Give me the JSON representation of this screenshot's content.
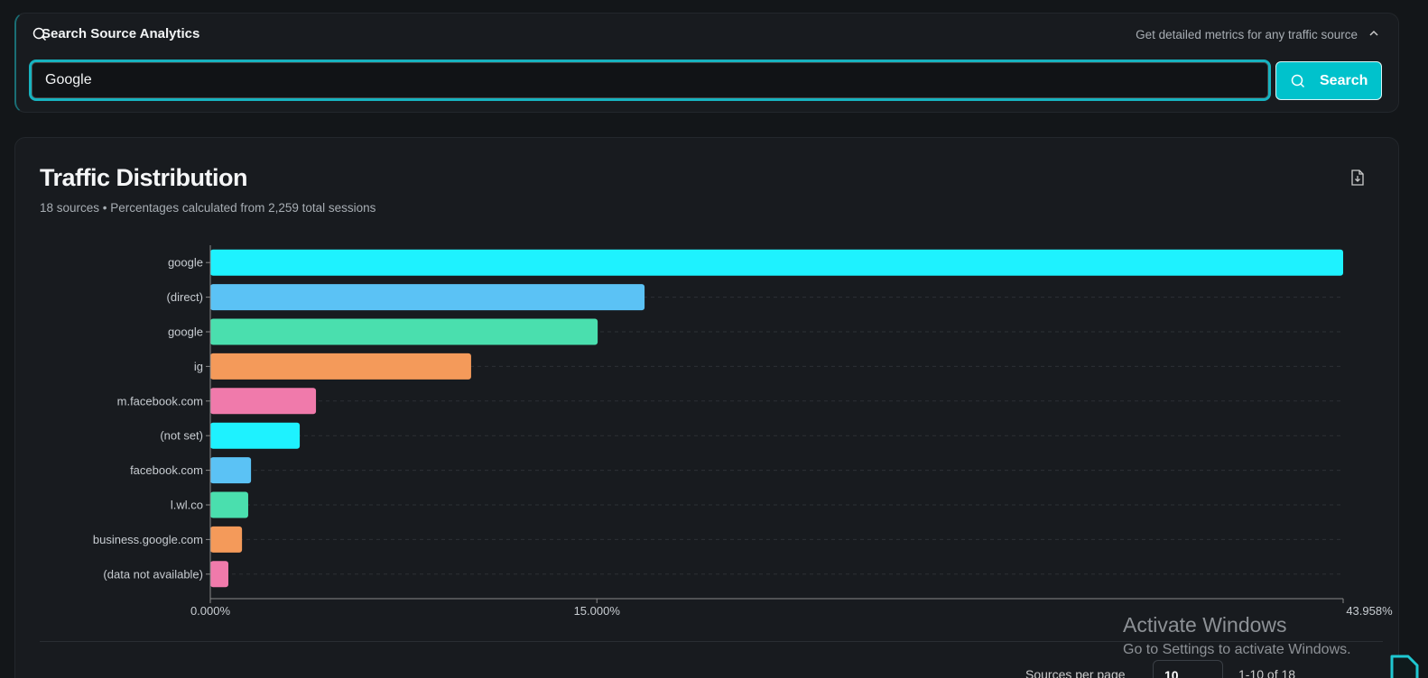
{
  "search": {
    "title": "Search Source Analytics",
    "hint": "Get detailed metrics for any traffic source",
    "value": "Google",
    "button_label": "Search"
  },
  "chart_header": {
    "title": "Traffic Distribution",
    "subtitle": "18 sources • Percentages calculated from 2,259 total sessions"
  },
  "chart_data": {
    "type": "bar",
    "orientation": "horizontal",
    "categories": [
      "google",
      "(direct)",
      "google",
      "ig",
      "m.facebook.com",
      "(not set)",
      "facebook.com",
      "l.wl.co",
      "business.google.com",
      "(data not available)"
    ],
    "values": [
      43.958,
      16.85,
      15.03,
      10.12,
      4.1,
      3.47,
      1.58,
      1.47,
      1.23,
      0.7
    ],
    "colors": [
      "#1ef2ff",
      "#5bc2f5",
      "#4adfae",
      "#f49a5a",
      "#f07aab",
      "#1ef2ff",
      "#5bc2f5",
      "#4adfae",
      "#f49a5a",
      "#f07aab"
    ],
    "xlim": [
      0,
      43.958
    ],
    "xticks": [
      "0.000%",
      "15.000%",
      "43.958%"
    ],
    "xtick_values": [
      0,
      15,
      43.958
    ],
    "grid": "horizontal dashed"
  },
  "pagination": {
    "rows_label": "Sources per page",
    "rows_value": "10",
    "range": "1-10 of 18"
  },
  "watermark": {
    "line1": "Activate Windows",
    "line2": "Go to Settings to activate Windows."
  }
}
